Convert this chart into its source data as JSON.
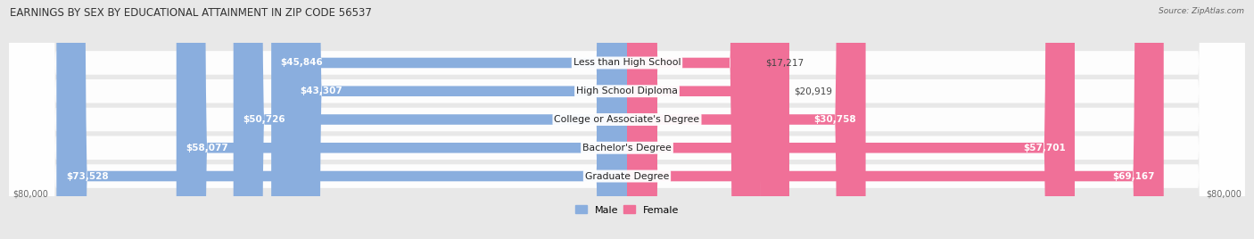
{
  "title": "EARNINGS BY SEX BY EDUCATIONAL ATTAINMENT IN ZIP CODE 56537",
  "source": "Source: ZipAtlas.com",
  "categories": [
    "Less than High School",
    "High School Diploma",
    "College or Associate's Degree",
    "Bachelor's Degree",
    "Graduate Degree"
  ],
  "male_values": [
    45846,
    43307,
    50726,
    58077,
    73528
  ],
  "female_values": [
    17217,
    20919,
    30758,
    57701,
    69167
  ],
  "male_color": "#8aaede",
  "female_color": "#f07098",
  "male_color_light": "#b8cef0",
  "female_color_light": "#f8b0c8",
  "max_value": 80000,
  "bg_color": "#e8e8e8",
  "row_bg_color": "#f5f5f5",
  "title_fontsize": 8.5,
  "label_fontsize": 7.8,
  "value_fontsize": 7.5,
  "legend_fontsize": 8
}
